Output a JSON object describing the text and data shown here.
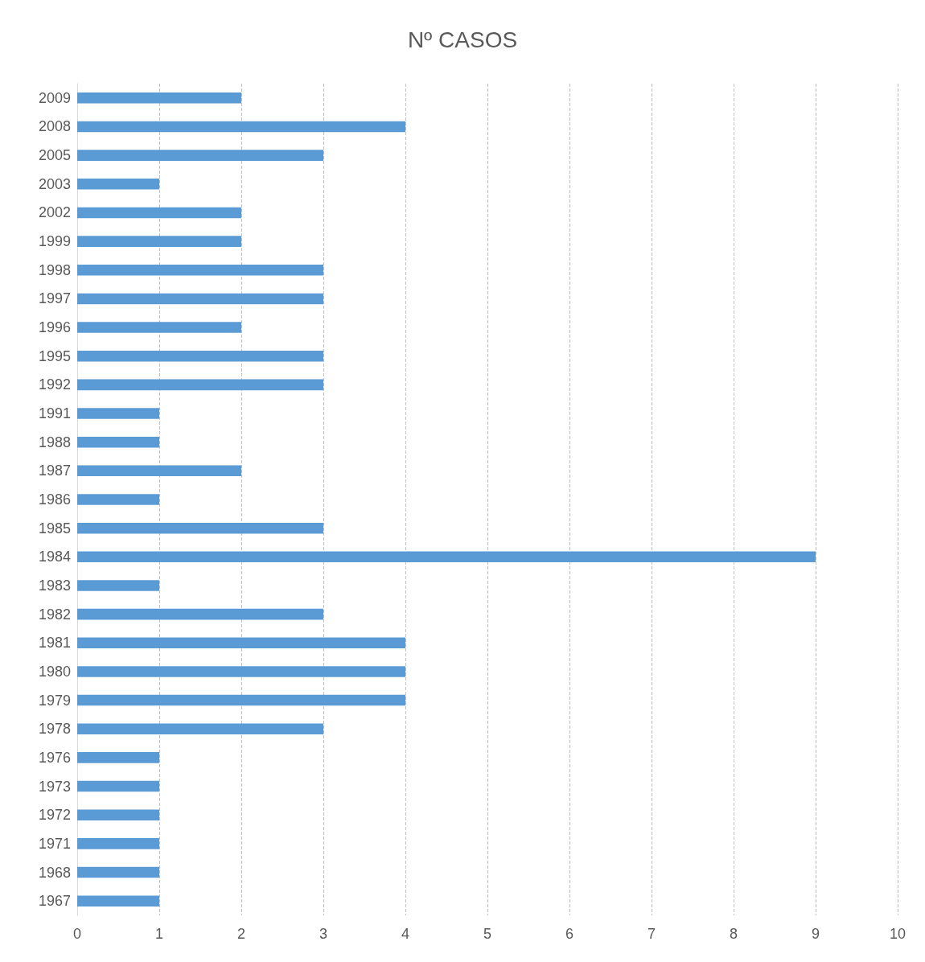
{
  "chart_data": {
    "type": "bar",
    "orientation": "horizontal",
    "title": "Nº CASOS",
    "categories": [
      "2009",
      "2008",
      "2005",
      "2003",
      "2002",
      "1999",
      "1998",
      "1997",
      "1996",
      "1995",
      "1992",
      "1991",
      "1988",
      "1987",
      "1986",
      "1985",
      "1984",
      "1983",
      "1982",
      "1981",
      "1980",
      "1979",
      "1978",
      "1976",
      "1973",
      "1972",
      "1971",
      "1968",
      "1967"
    ],
    "values": [
      2,
      4,
      3,
      1,
      2,
      2,
      3,
      3,
      2,
      3,
      3,
      1,
      1,
      2,
      1,
      3,
      9,
      1,
      3,
      4,
      4,
      4,
      3,
      1,
      1,
      1,
      1,
      1,
      1
    ],
    "color": "#5b9bd5",
    "xlim": [
      0,
      10
    ],
    "xticks": [
      0,
      1,
      2,
      3,
      4,
      5,
      6,
      7,
      8,
      9,
      10
    ],
    "grid": "x"
  }
}
